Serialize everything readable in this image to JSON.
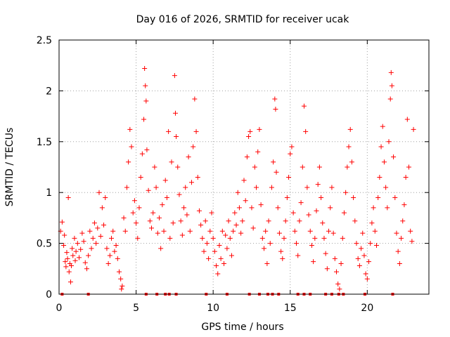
{
  "chart_data": {
    "type": "scatter",
    "title": "Day 016 of 2026, SRMTID for receiver ucak",
    "xlabel": "GPS time / hours",
    "ylabel": "SRMTID / TECUs",
    "xlim": [
      0,
      24
    ],
    "ylim": [
      0,
      2.5
    ],
    "xticks": [
      0,
      5,
      10,
      15,
      20
    ],
    "xtick_labels": [
      "0",
      "5",
      "10",
      "15",
      "20"
    ],
    "yticks": [
      0,
      0.5,
      1,
      1.5,
      2,
      2.5
    ],
    "ytick_labels": [
      "0",
      "0.5",
      "1",
      "1.5",
      "2",
      "2.5"
    ],
    "grid": true,
    "marker": "+",
    "series": [
      {
        "name": "SRMTID",
        "color": "#ff0000",
        "points": [
          [
            0.1,
            0.62
          ],
          [
            0.2,
            0.71
          ],
          [
            0.3,
            0.48
          ],
          [
            0.35,
            0.58
          ],
          [
            0.4,
            0.32
          ],
          [
            0.45,
            0.27
          ],
          [
            0.5,
            0.41
          ],
          [
            0.55,
            0.35
          ],
          [
            0.6,
            0.95
          ],
          [
            0.65,
            0.22
          ],
          [
            0.7,
            0.3
          ],
          [
            0.75,
            0.12
          ],
          [
            0.8,
            0.28
          ],
          [
            0.85,
            0.45
          ],
          [
            0.9,
            0.38
          ],
          [
            1.0,
            0.55
          ],
          [
            1.05,
            0.33
          ],
          [
            1.1,
            0.42
          ],
          [
            1.2,
            0.5
          ],
          [
            1.3,
            0.36
          ],
          [
            1.4,
            0.44
          ],
          [
            1.5,
            0.6
          ],
          [
            1.6,
            0.52
          ],
          [
            1.7,
            0.31
          ],
          [
            1.8,
            0.25
          ],
          [
            1.9,
            0.38
          ],
          [
            2.0,
            0.62
          ],
          [
            2.1,
            0.45
          ],
          [
            2.2,
            0.55
          ],
          [
            2.3,
            0.7
          ],
          [
            2.4,
            0.5
          ],
          [
            2.5,
            0.65
          ],
          [
            2.6,
            1.0
          ],
          [
            2.7,
            0.57
          ],
          [
            2.8,
            0.85
          ],
          [
            2.9,
            0.68
          ],
          [
            3.0,
            0.95
          ],
          [
            3.1,
            0.45
          ],
          [
            3.2,
            0.3
          ],
          [
            3.3,
            0.38
          ],
          [
            3.4,
            0.55
          ],
          [
            3.5,
            0.62
          ],
          [
            3.6,
            0.42
          ],
          [
            3.7,
            0.48
          ],
          [
            3.8,
            0.35
          ],
          [
            3.9,
            0.22
          ],
          [
            4.0,
            0.15
          ],
          [
            4.05,
            0.05
          ],
          [
            4.1,
            0.08
          ],
          [
            4.2,
            0.75
          ],
          [
            4.3,
            0.62
          ],
          [
            4.4,
            1.05
          ],
          [
            4.5,
            1.3
          ],
          [
            4.6,
            1.62
          ],
          [
            4.7,
            1.45
          ],
          [
            4.8,
            0.8
          ],
          [
            4.9,
            0.92
          ],
          [
            5.0,
            0.7
          ],
          [
            5.1,
            0.55
          ],
          [
            5.2,
            0.85
          ],
          [
            5.3,
            1.15
          ],
          [
            5.4,
            1.38
          ],
          [
            5.5,
            1.72
          ],
          [
            5.55,
            2.22
          ],
          [
            5.6,
            2.05
          ],
          [
            5.65,
            1.9
          ],
          [
            5.7,
            1.42
          ],
          [
            5.8,
            1.02
          ],
          [
            5.9,
            0.72
          ],
          [
            6.0,
            0.65
          ],
          [
            6.1,
            0.8
          ],
          [
            6.2,
            1.25
          ],
          [
            6.3,
            1.05
          ],
          [
            6.4,
            0.6
          ],
          [
            6.5,
            0.75
          ],
          [
            6.6,
            0.45
          ],
          [
            6.7,
            0.88
          ],
          [
            6.8,
            0.62
          ],
          [
            6.9,
            1.12
          ],
          [
            7.0,
            0.95
          ],
          [
            7.1,
            1.6
          ],
          [
            7.2,
            0.55
          ],
          [
            7.3,
            1.3
          ],
          [
            7.4,
            0.7
          ],
          [
            7.5,
            2.15
          ],
          [
            7.55,
            1.78
          ],
          [
            7.6,
            1.55
          ],
          [
            7.7,
            1.25
          ],
          [
            7.8,
            0.98
          ],
          [
            7.9,
            0.72
          ],
          [
            8.0,
            0.58
          ],
          [
            8.1,
            0.85
          ],
          [
            8.2,
            1.05
          ],
          [
            8.3,
            0.78
          ],
          [
            8.4,
            1.35
          ],
          [
            8.5,
            0.62
          ],
          [
            8.6,
            1.1
          ],
          [
            8.7,
            1.45
          ],
          [
            8.8,
            1.92
          ],
          [
            8.9,
            1.6
          ],
          [
            9.0,
            1.15
          ],
          [
            9.1,
            0.82
          ],
          [
            9.2,
            0.68
          ],
          [
            9.3,
            0.55
          ],
          [
            9.4,
            0.42
          ],
          [
            9.5,
            0.72
          ],
          [
            9.6,
            0.5
          ],
          [
            9.7,
            0.35
          ],
          [
            9.8,
            0.62
          ],
          [
            9.9,
            0.8
          ],
          [
            10.0,
            0.55
          ],
          [
            10.1,
            0.42
          ],
          [
            10.2,
            0.28
          ],
          [
            10.3,
            0.2
          ],
          [
            10.4,
            0.48
          ],
          [
            10.5,
            0.35
          ],
          [
            10.6,
            0.62
          ],
          [
            10.7,
            0.3
          ],
          [
            10.8,
            0.58
          ],
          [
            10.9,
            0.45
          ],
          [
            11.0,
            0.72
          ],
          [
            11.1,
            0.55
          ],
          [
            11.2,
            0.38
          ],
          [
            11.3,
            0.62
          ],
          [
            11.4,
            0.8
          ],
          [
            11.5,
            0.68
          ],
          [
            11.6,
            1.0
          ],
          [
            11.7,
            0.85
          ],
          [
            11.8,
            0.6
          ],
          [
            11.9,
            0.72
          ],
          [
            12.0,
            1.12
          ],
          [
            12.1,
            0.92
          ],
          [
            12.2,
            1.35
          ],
          [
            12.3,
            1.55
          ],
          [
            12.4,
            1.6
          ],
          [
            12.5,
            0.85
          ],
          [
            12.6,
            0.65
          ],
          [
            12.7,
            1.25
          ],
          [
            12.8,
            1.05
          ],
          [
            12.9,
            1.4
          ],
          [
            13.0,
            1.62
          ],
          [
            13.1,
            0.88
          ],
          [
            13.2,
            0.55
          ],
          [
            13.3,
            0.45
          ],
          [
            13.4,
            0.62
          ],
          [
            13.5,
            0.3
          ],
          [
            13.6,
            0.72
          ],
          [
            13.7,
            0.5
          ],
          [
            13.8,
            1.05
          ],
          [
            13.9,
            1.3
          ],
          [
            14.0,
            1.92
          ],
          [
            14.05,
            1.82
          ],
          [
            14.1,
            1.2
          ],
          [
            14.2,
            0.85
          ],
          [
            14.3,
            0.6
          ],
          [
            14.4,
            0.42
          ],
          [
            14.5,
            0.35
          ],
          [
            14.6,
            0.55
          ],
          [
            14.7,
            0.72
          ],
          [
            14.8,
            0.95
          ],
          [
            14.9,
            1.15
          ],
          [
            15.0,
            1.38
          ],
          [
            15.1,
            1.45
          ],
          [
            15.2,
            0.8
          ],
          [
            15.3,
            0.62
          ],
          [
            15.4,
            0.5
          ],
          [
            15.5,
            0.38
          ],
          [
            15.6,
            0.72
          ],
          [
            15.7,
            0.9
          ],
          [
            15.8,
            1.25
          ],
          [
            15.9,
            1.85
          ],
          [
            16.0,
            1.6
          ],
          [
            16.1,
            1.05
          ],
          [
            16.2,
            0.78
          ],
          [
            16.3,
            0.62
          ],
          [
            16.4,
            0.48
          ],
          [
            16.5,
            0.32
          ],
          [
            16.6,
            0.55
          ],
          [
            16.7,
            0.82
          ],
          [
            16.8,
            1.08
          ],
          [
            16.9,
            1.25
          ],
          [
            17.0,
            0.95
          ],
          [
            17.1,
            0.7
          ],
          [
            17.2,
            0.55
          ],
          [
            17.3,
            0.4
          ],
          [
            17.4,
            0.25
          ],
          [
            17.5,
            0.62
          ],
          [
            17.6,
            0.85
          ],
          [
            17.7,
            1.05
          ],
          [
            17.8,
            0.6
          ],
          [
            17.9,
            0.35
          ],
          [
            18.0,
            0.22
          ],
          [
            18.1,
            0.1
          ],
          [
            18.2,
            0.05
          ],
          [
            18.3,
            0.3
          ],
          [
            18.4,
            0.55
          ],
          [
            18.5,
            0.8
          ],
          [
            18.6,
            1.0
          ],
          [
            18.7,
            1.25
          ],
          [
            18.8,
            1.45
          ],
          [
            18.9,
            1.62
          ],
          [
            19.0,
            1.3
          ],
          [
            19.1,
            0.95
          ],
          [
            19.2,
            0.72
          ],
          [
            19.3,
            0.5
          ],
          [
            19.4,
            0.35
          ],
          [
            19.5,
            0.28
          ],
          [
            19.6,
            0.45
          ],
          [
            19.7,
            0.6
          ],
          [
            19.8,
            0.38
          ],
          [
            19.9,
            0.2
          ],
          [
            20.0,
            0.15
          ],
          [
            20.1,
            0.32
          ],
          [
            20.2,
            0.5
          ],
          [
            20.3,
            0.7
          ],
          [
            20.4,
            0.85
          ],
          [
            20.5,
            0.62
          ],
          [
            20.6,
            0.48
          ],
          [
            20.7,
            0.95
          ],
          [
            20.8,
            1.15
          ],
          [
            20.9,
            1.45
          ],
          [
            21.0,
            1.65
          ],
          [
            21.1,
            1.3
          ],
          [
            21.2,
            1.05
          ],
          [
            21.3,
            0.85
          ],
          [
            21.4,
            1.5
          ],
          [
            21.5,
            1.92
          ],
          [
            21.55,
            2.18
          ],
          [
            21.6,
            2.05
          ],
          [
            21.7,
            1.35
          ],
          [
            21.8,
            0.95
          ],
          [
            21.9,
            0.6
          ],
          [
            22.0,
            0.42
          ],
          [
            22.1,
            0.3
          ],
          [
            22.2,
            0.55
          ],
          [
            22.3,
            0.72
          ],
          [
            22.4,
            0.88
          ],
          [
            22.5,
            1.15
          ],
          [
            22.6,
            1.72
          ],
          [
            22.7,
            1.25
          ],
          [
            22.8,
            0.62
          ],
          [
            22.9,
            0.52
          ],
          [
            23.0,
            1.62
          ]
        ]
      }
    ],
    "zero_markers_x": [
      0.2,
      1.9,
      5.65,
      6.35,
      6.9,
      7.15,
      7.6,
      9.55,
      10.9,
      12.35,
      13.0,
      13.55,
      13.85,
      14.25,
      15.5,
      15.9,
      16.3,
      17.3,
      17.7,
      18.15,
      18.45,
      19.85,
      21.65
    ]
  }
}
